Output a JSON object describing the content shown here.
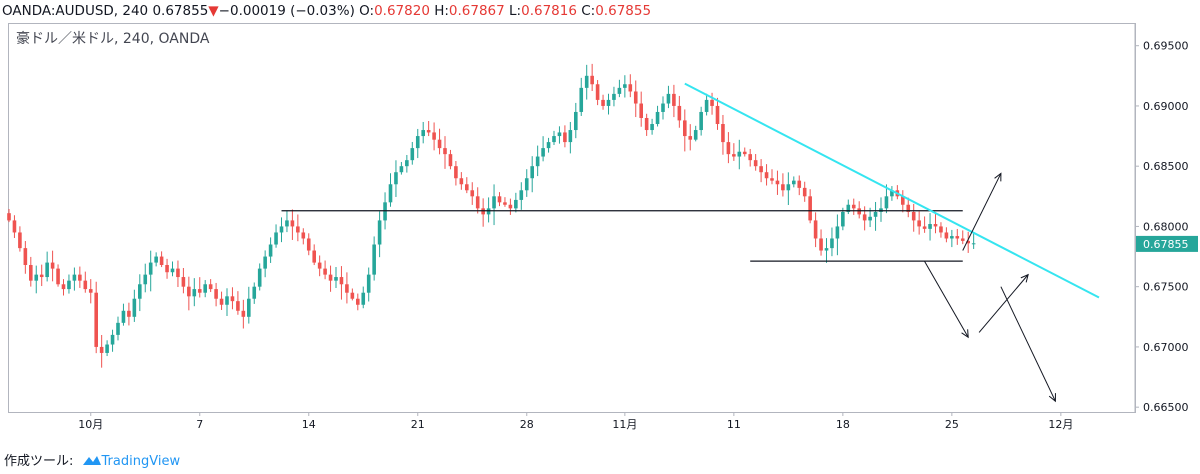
{
  "header": {
    "symbol": "OANDA:AUDUSD,",
    "interval": "240",
    "last": "0.67855",
    "arrow": "▼",
    "change": "−0.00019 (−0.03%)",
    "o_label": "O:",
    "o_value": "0.67820",
    "h_label": "H:",
    "h_value": "0.67867",
    "l_label": "L:",
    "l_value": "0.67816",
    "c_label": "C:",
    "c_value": "0.67855"
  },
  "overlay": {
    "label": "豪ドル／米ドル, 240, OANDA"
  },
  "price_tag": "0.67855",
  "footer": {
    "made_with": "作成ツール:",
    "brand": "TradingView"
  },
  "colors": {
    "up": "#26a69a",
    "down": "#ef5350",
    "trend": "#35e5f0",
    "tag": "#26a69a"
  },
  "chart_data": {
    "type": "candlestick",
    "symbol": "AUDUSD",
    "y_ticks": [
      "0.69500",
      "0.69000",
      "0.68500",
      "0.68000",
      "0.67500",
      "0.67000",
      "0.66500"
    ],
    "ylim": [
      0.6646,
      0.6968
    ],
    "x_ticks": [
      "10月",
      "7",
      "14",
      "21",
      "28",
      "11月",
      "11",
      "18",
      "25",
      "12月"
    ],
    "x_tick_index": [
      15,
      35,
      55,
      75,
      95,
      113,
      133,
      153,
      173,
      193
    ],
    "close_series": [
      0.6805,
      0.6795,
      0.6782,
      0.6768,
      0.6755,
      0.676,
      0.6758,
      0.677,
      0.6765,
      0.6752,
      0.6748,
      0.6755,
      0.676,
      0.6755,
      0.6748,
      0.6745,
      0.67,
      0.6695,
      0.6702,
      0.671,
      0.672,
      0.673,
      0.6725,
      0.674,
      0.6752,
      0.676,
      0.677,
      0.6775,
      0.6768,
      0.6762,
      0.6765,
      0.6758,
      0.675,
      0.6742,
      0.6748,
      0.6745,
      0.6752,
      0.6748,
      0.674,
      0.6735,
      0.6742,
      0.6738,
      0.673,
      0.6725,
      0.674,
      0.675,
      0.6765,
      0.6775,
      0.6785,
      0.6795,
      0.68,
      0.6805,
      0.68,
      0.6795,
      0.679,
      0.678,
      0.677,
      0.6765,
      0.676,
      0.6755,
      0.6758,
      0.6752,
      0.6745,
      0.674,
      0.6735,
      0.6745,
      0.676,
      0.6785,
      0.6805,
      0.682,
      0.6835,
      0.6845,
      0.685,
      0.6855,
      0.6865,
      0.6875,
      0.688,
      0.6878,
      0.6872,
      0.6865,
      0.686,
      0.685,
      0.684,
      0.6835,
      0.683,
      0.6825,
      0.6815,
      0.681,
      0.6815,
      0.6825,
      0.682,
      0.6818,
      0.6815,
      0.6822,
      0.683,
      0.684,
      0.685,
      0.6858,
      0.6865,
      0.687,
      0.6875,
      0.6878,
      0.687,
      0.688,
      0.6895,
      0.6915,
      0.6925,
      0.6918,
      0.6905,
      0.69,
      0.6905,
      0.691,
      0.6915,
      0.6918,
      0.6912,
      0.6902,
      0.689,
      0.688,
      0.6885,
      0.6895,
      0.6902,
      0.691,
      0.69,
      0.6888,
      0.6875,
      0.6872,
      0.688,
      0.6895,
      0.6905,
      0.69,
      0.6885,
      0.687,
      0.686,
      0.6858,
      0.6862,
      0.686,
      0.6855,
      0.685,
      0.6845,
      0.684,
      0.6838,
      0.6835,
      0.683,
      0.6835,
      0.6838,
      0.6832,
      0.6825,
      0.6805,
      0.679,
      0.678,
      0.6782,
      0.679,
      0.68,
      0.6812,
      0.6818,
      0.6815,
      0.681,
      0.6805,
      0.6808,
      0.6812,
      0.6815,
      0.6825,
      0.683,
      0.6825,
      0.6818,
      0.6812,
      0.6805,
      0.68,
      0.6798,
      0.6802,
      0.68,
      0.6795,
      0.679,
      0.6792,
      0.679,
      0.6788,
      0.6786,
      0.6786
    ],
    "horizontal_lines": [
      {
        "from_index": 50,
        "to_index": 175,
        "price": 0.6813
      },
      {
        "from_index": 136,
        "to_index": 175,
        "price": 0.67712
      }
    ],
    "trendline": {
      "from_index": 124,
      "from_price": 0.69185,
      "to_index": 200,
      "to_price": 0.6741
    },
    "arrows": [
      {
        "from_index": 175,
        "from_price": 0.678,
        "to_index": 182,
        "to_price": 0.6844
      },
      {
        "from_index": 168,
        "from_price": 0.6771,
        "to_index": 176,
        "to_price": 0.6708
      },
      {
        "from_index": 178,
        "from_price": 0.6712,
        "to_index": 187,
        "to_price": 0.676
      },
      {
        "from_index": 182,
        "from_price": 0.675,
        "to_index": 192,
        "to_price": 0.6655
      }
    ]
  }
}
